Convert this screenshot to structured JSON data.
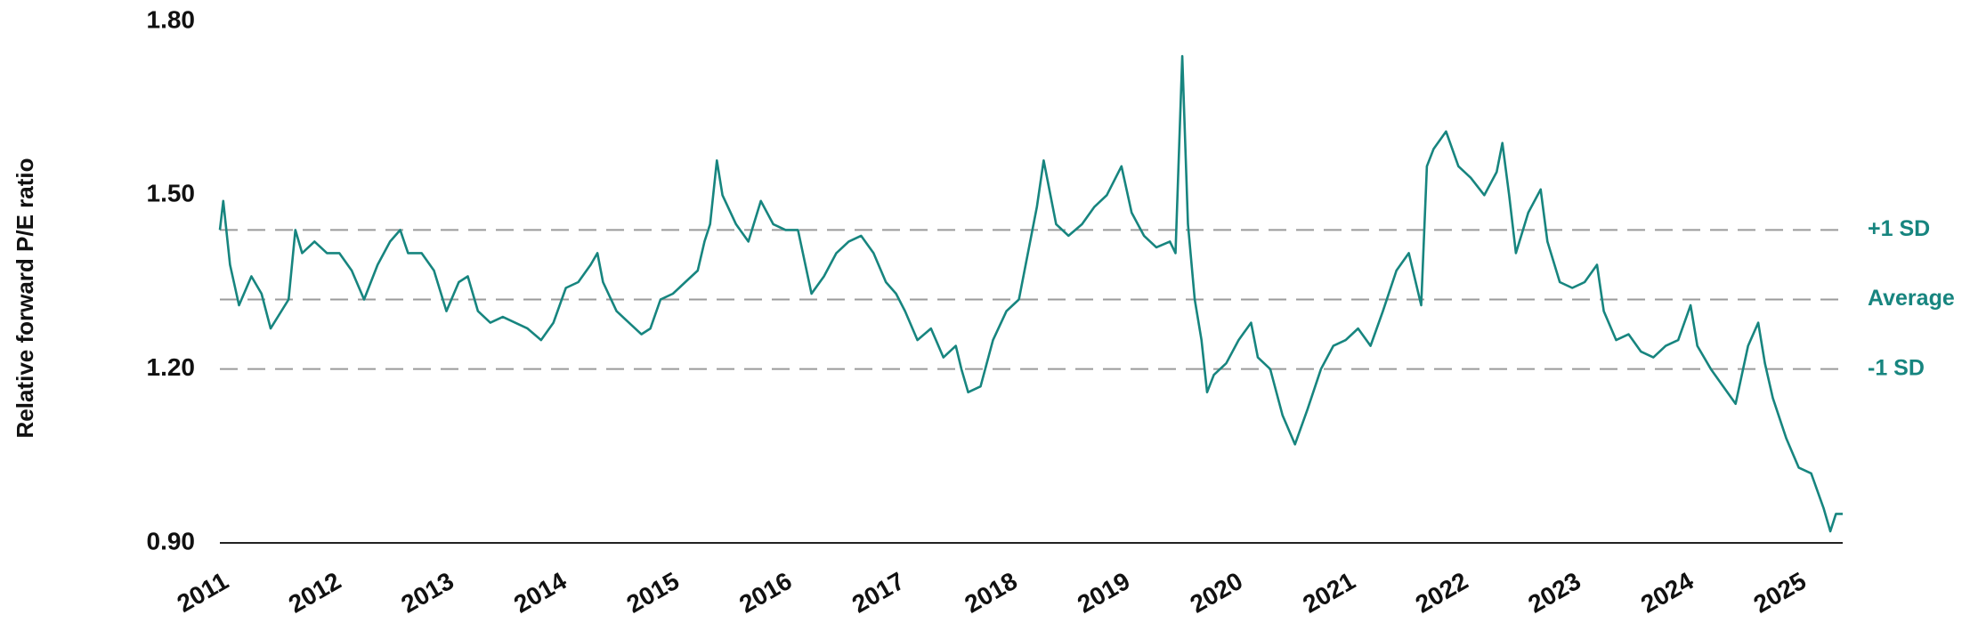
{
  "chart_data": {
    "type": "line",
    "y_label": "Relative forward P/E ratio",
    "color": "#17857f",
    "x": [
      2011.0,
      2011.03,
      2011.09,
      2011.17,
      2011.28,
      2011.37,
      2011.45,
      2011.61,
      2011.67,
      2011.73,
      2011.84,
      2011.95,
      2012.06,
      2012.17,
      2012.28,
      2012.4,
      2012.51,
      2012.6,
      2012.67,
      2012.79,
      2012.9,
      2013.01,
      2013.12,
      2013.2,
      2013.29,
      2013.4,
      2013.51,
      2013.62,
      2013.73,
      2013.85,
      2013.96,
      2014.07,
      2014.18,
      2014.29,
      2014.35,
      2014.4,
      2014.52,
      2014.63,
      2014.74,
      2014.82,
      2014.91,
      2015.02,
      2015.13,
      2015.24,
      2015.3,
      2015.35,
      2015.41,
      2015.46,
      2015.58,
      2015.69,
      2015.8,
      2015.91,
      2016.02,
      2016.13,
      2016.25,
      2016.36,
      2016.47,
      2016.58,
      2016.69,
      2016.8,
      2016.91,
      2017.0,
      2017.08,
      2017.19,
      2017.31,
      2017.42,
      2017.53,
      2017.58,
      2017.64,
      2017.75,
      2017.86,
      2017.98,
      2018.09,
      2018.14,
      2018.25,
      2018.31,
      2018.42,
      2018.53,
      2018.65,
      2018.76,
      2018.87,
      2019.0,
      2019.09,
      2019.2,
      2019.31,
      2019.43,
      2019.48,
      2019.54,
      2019.59,
      2019.65,
      2019.71,
      2019.76,
      2019.82,
      2019.93,
      2020.04,
      2020.15,
      2020.21,
      2020.32,
      2020.43,
      2020.54,
      2020.65,
      2020.77,
      2020.88,
      2020.99,
      2021.1,
      2021.21,
      2021.32,
      2021.44,
      2021.55,
      2021.66,
      2021.71,
      2021.77,
      2021.88,
      2021.99,
      2022.1,
      2022.22,
      2022.33,
      2022.38,
      2022.44,
      2022.5,
      2022.61,
      2022.72,
      2022.78,
      2022.89,
      2023.0,
      2023.11,
      2023.22,
      2023.28,
      2023.39,
      2023.5,
      2023.61,
      2023.72,
      2023.83,
      2023.94,
      2024.05,
      2024.11,
      2024.23,
      2024.34,
      2024.45,
      2024.56,
      2024.65,
      2024.71,
      2024.78,
      2024.9,
      2025.01,
      2025.12,
      2025.23,
      2025.29,
      2025.34,
      2025.4
    ],
    "values": [
      1.44,
      1.49,
      1.38,
      1.31,
      1.36,
      1.33,
      1.27,
      1.32,
      1.44,
      1.4,
      1.42,
      1.4,
      1.4,
      1.37,
      1.32,
      1.38,
      1.42,
      1.44,
      1.4,
      1.4,
      1.37,
      1.3,
      1.35,
      1.36,
      1.3,
      1.28,
      1.29,
      1.28,
      1.27,
      1.25,
      1.28,
      1.34,
      1.35,
      1.38,
      1.4,
      1.35,
      1.3,
      1.28,
      1.26,
      1.27,
      1.32,
      1.33,
      1.35,
      1.37,
      1.42,
      1.45,
      1.56,
      1.5,
      1.45,
      1.42,
      1.49,
      1.45,
      1.44,
      1.44,
      1.33,
      1.36,
      1.4,
      1.42,
      1.43,
      1.4,
      1.35,
      1.33,
      1.3,
      1.25,
      1.27,
      1.22,
      1.24,
      1.2,
      1.16,
      1.17,
      1.25,
      1.3,
      1.32,
      1.37,
      1.48,
      1.56,
      1.45,
      1.43,
      1.45,
      1.48,
      1.5,
      1.55,
      1.47,
      1.43,
      1.41,
      1.42,
      1.4,
      1.74,
      1.45,
      1.32,
      1.25,
      1.16,
      1.19,
      1.21,
      1.25,
      1.28,
      1.22,
      1.2,
      1.12,
      1.07,
      1.13,
      1.2,
      1.24,
      1.25,
      1.27,
      1.24,
      1.3,
      1.37,
      1.4,
      1.31,
      1.55,
      1.58,
      1.61,
      1.55,
      1.53,
      1.5,
      1.54,
      1.59,
      1.5,
      1.4,
      1.47,
      1.51,
      1.42,
      1.35,
      1.34,
      1.35,
      1.38,
      1.3,
      1.25,
      1.26,
      1.23,
      1.22,
      1.24,
      1.25,
      1.31,
      1.24,
      1.2,
      1.17,
      1.14,
      1.24,
      1.28,
      1.21,
      1.15,
      1.08,
      1.03,
      1.02,
      0.96,
      0.92,
      0.95,
      0.95
    ],
    "xlim": [
      2011,
      2025.4
    ],
    "xticks": [
      2011,
      2012,
      2013,
      2014,
      2015,
      2016,
      2017,
      2018,
      2019,
      2020,
      2021,
      2022,
      2023,
      2024,
      2025
    ],
    "ylim": [
      0.9,
      1.8
    ],
    "yticks": [
      {
        "value": 0.9,
        "label": "0.90"
      },
      {
        "value": 1.2,
        "label": "1.20"
      },
      {
        "value": 1.5,
        "label": "1.50"
      },
      {
        "value": 1.8,
        "label": "1.80"
      }
    ],
    "reference_lines": [
      {
        "label": "+1 SD",
        "value": 1.44
      },
      {
        "label": "Average",
        "value": 1.32
      },
      {
        "label": "-1 SD",
        "value": 1.2
      }
    ]
  }
}
